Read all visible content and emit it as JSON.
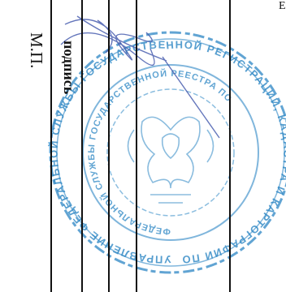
{
  "document": {
    "mp_label": "М.П.",
    "signature_label": "подпись",
    "right_edge_fragment": "Е"
  },
  "stamp": {
    "outer_ring_text": "УПРАВЛЕНИЕ ФЕДЕРАЛЬНОЙ СЛУЖБЫ ГОСУДАРСТВЕННОЙ РЕГИСТРАЦИИ, КАДАСТРА И КАРТОГРАФИИ ПО",
    "inner_ring_text": "ФЕДЕРАЛЬНОЙ СЛУЖБЫ ГОСУДАРСТВЕННОЙ РЕЕСТРА ПО",
    "ink_color": "#2c86c4"
  },
  "colors": {
    "lines": "#111111",
    "signature_ink": "#4a5fb0"
  }
}
